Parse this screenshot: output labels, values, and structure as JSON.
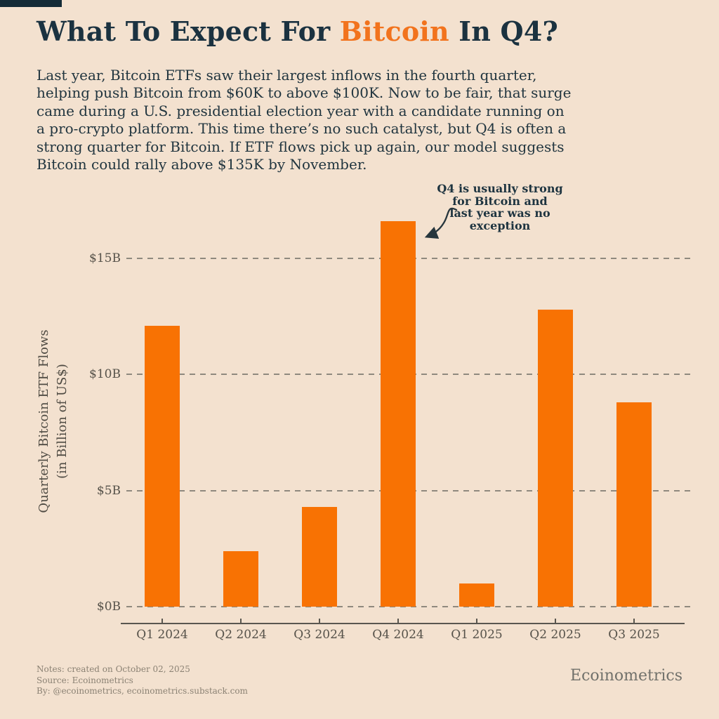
{
  "page": {
    "background_color": "#f3e1cf",
    "navy_color": "#1b3240",
    "corner_tab_color": "#142b37"
  },
  "header": {
    "title_prefix": "What To Expect For ",
    "title_highlight": "Bitcoin",
    "title_suffix": " In Q4?",
    "title_highlight_color": "#f2731d",
    "intro": "Last year, Bitcoin ETFs saw their largest inflows in the fourth quarter, helping push Bitcoin from $60K to above $100K. Now to be fair, that surge came during a U.S. presidential election year with a candidate running on a pro-crypto platform. This time there’s no such catalyst, but Q4 is often a strong quarter for Bitcoin. If ETF flows pick up again, our model suggests Bitcoin could rally above $135K by November."
  },
  "chart_data": {
    "type": "bar",
    "title": "",
    "categories": [
      "Q1 2024",
      "Q2 2024",
      "Q3 2024",
      "Q4 2024",
      "Q1 2025",
      "Q2 2025",
      "Q3 2025"
    ],
    "values": [
      12.1,
      2.4,
      4.3,
      16.6,
      1.0,
      12.8,
      8.8
    ],
    "values_unit": "Billion US$",
    "ylabel_line1": "Quarterly Bitcoin ETF Flows",
    "ylabel_line2": "(in Billion of US$)",
    "yticks": [
      {
        "value": 0,
        "label": "$0B"
      },
      {
        "value": 5,
        "label": "$5B"
      },
      {
        "value": 10,
        "label": "$10B"
      },
      {
        "value": 15,
        "label": "$15B"
      }
    ],
    "ylim": [
      0,
      17
    ],
    "bar_color": "#f87203",
    "grid": "horizontal dashed",
    "legend": "none",
    "annotation": {
      "lines": [
        "Q4 is usually strong",
        "for Bitcoin and",
        "last year was no",
        "exception"
      ],
      "target": "Q4 2024"
    }
  },
  "footer": {
    "notes": "Notes: created on October 02, 2025",
    "source": "Source: Ecoinometrics",
    "by": "By: @ecoinometrics, ecoinometrics.substack.com",
    "logo": "Ecoinometrics"
  }
}
